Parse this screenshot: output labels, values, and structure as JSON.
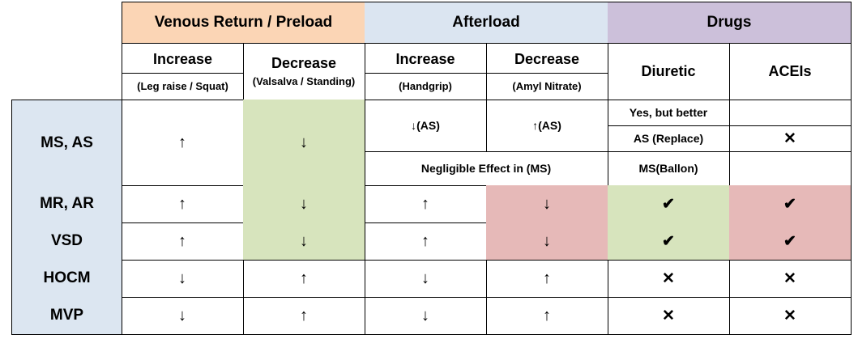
{
  "header": {
    "groups": {
      "venous": "Venous Return / Preload",
      "afterload": "Afterload",
      "drugs": "Drugs"
    },
    "venous_increase": "Increase",
    "venous_increase_sub": "(Leg raise / Squat)",
    "venous_decrease": "Decrease",
    "venous_decrease_sub": "(Valsalva / Standing)",
    "after_increase": "Increase",
    "after_increase_sub": "(Handgrip)",
    "after_decrease": "Decrease",
    "after_decrease_sub": "(Amyl Nitrate)",
    "diuretic": "Diuretic",
    "acei": "ACEIs"
  },
  "rows": {
    "ms_as": {
      "label": "MS, AS",
      "venous_inc": "↑",
      "venous_dec": "↓",
      "after_inc": "↓(AS)",
      "after_dec": "↑(AS)",
      "after_ms": "Negligible Effect in (MS)",
      "diuretic_1": "Yes, but better",
      "diuretic_2": "AS (Replace)",
      "diuretic_3": "MS(Ballon)",
      "acei": "✕"
    },
    "mr_ar": {
      "label": "MR, AR",
      "venous_inc": "↑",
      "venous_dec": "↓",
      "after_inc": "↑",
      "after_dec": "↓",
      "diuretic": "✔",
      "acei": "✔"
    },
    "vsd": {
      "label": "VSD",
      "venous_inc": "↑",
      "venous_dec": "↓",
      "after_inc": "↑",
      "after_dec": "↓",
      "diuretic": "✔",
      "acei": "✔"
    },
    "hocm": {
      "label": "HOCM",
      "venous_inc": "↓",
      "venous_dec": "↑",
      "after_inc": "↓",
      "after_dec": "↑",
      "diuretic": "✕",
      "acei": "✕"
    },
    "mvp": {
      "label": "MVP",
      "venous_inc": "↓",
      "venous_dec": "↑",
      "after_inc": "↓",
      "after_dec": "↑",
      "diuretic": "✕",
      "acei": "✕"
    }
  },
  "colors": {
    "venous_header": "#fbd5b5",
    "afterload_header": "#dbe5f1",
    "drugs_header": "#ccc0da",
    "row_header": "#dce6f1",
    "green": "#d7e4bd",
    "pink": "#e6b9b8"
  }
}
